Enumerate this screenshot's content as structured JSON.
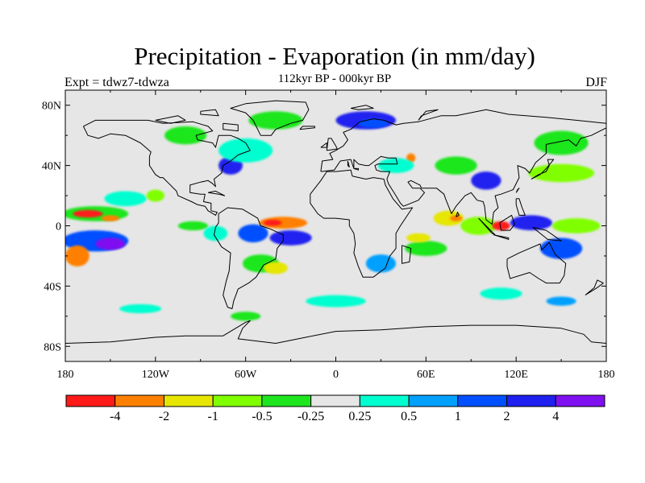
{
  "title": "Precipitation - Evaporation (in mm/day)",
  "subtitle": "112kyr BP - 000kyr BP",
  "left_label": "Expt = tdwz7-tdwza",
  "right_label": "DJF",
  "lat_ticks": [
    {
      "label": "80N",
      "value": 80
    },
    {
      "label": "40N",
      "value": 40
    },
    {
      "label": "0",
      "value": 0
    },
    {
      "label": "40S",
      "value": -40
    },
    {
      "label": "80S",
      "value": -80
    }
  ],
  "lon_ticks": [
    {
      "label": "180",
      "value": -180
    },
    {
      "label": "120W",
      "value": -120
    },
    {
      "label": "60W",
      "value": -60
    },
    {
      "label": "0",
      "value": 0
    },
    {
      "label": "60E",
      "value": 60
    },
    {
      "label": "120E",
      "value": 120
    },
    {
      "label": "180",
      "value": 180
    }
  ],
  "colorbar": {
    "colors": [
      "#ff1a1a",
      "#ff8000",
      "#e6e600",
      "#80ff00",
      "#1ee61e",
      "#e6e6e6",
      "#00ffd0",
      "#00a0ff",
      "#0050ff",
      "#2020f0",
      "#7f10f0"
    ],
    "labels": [
      "-4",
      "-2",
      "-1",
      "-0.5",
      "-0.25",
      "0.25",
      "0.5",
      "1",
      "2",
      "4"
    ]
  },
  "map_background": "#e6e6e6",
  "anomaly_blobs": [
    {
      "lon": -160,
      "lat": 8,
      "rx": 22,
      "ry": 5,
      "c": 4
    },
    {
      "lon": -165,
      "lat": 8,
      "rx": 10,
      "ry": 2.5,
      "c": 0
    },
    {
      "lon": -150,
      "lat": 5,
      "rx": 6,
      "ry": 2,
      "c": 1
    },
    {
      "lon": -160,
      "lat": -10,
      "rx": 22,
      "ry": 7,
      "c": 8
    },
    {
      "lon": -150,
      "lat": -12,
      "rx": 10,
      "ry": 4,
      "c": 10
    },
    {
      "lon": -172,
      "lat": -20,
      "rx": 8,
      "ry": 7,
      "c": 1
    },
    {
      "lon": -140,
      "lat": 18,
      "rx": 14,
      "ry": 5,
      "c": 6
    },
    {
      "lon": -120,
      "lat": 20,
      "rx": 6,
      "ry": 4,
      "c": 3
    },
    {
      "lon": -95,
      "lat": 0,
      "rx": 10,
      "ry": 3,
      "c": 4
    },
    {
      "lon": -80,
      "lat": -5,
      "rx": 8,
      "ry": 5,
      "c": 6
    },
    {
      "lon": -35,
      "lat": 2,
      "rx": 16,
      "ry": 4,
      "c": 1
    },
    {
      "lon": -42,
      "lat": 2,
      "rx": 6,
      "ry": 2,
      "c": 0
    },
    {
      "lon": -55,
      "lat": -5,
      "rx": 10,
      "ry": 6,
      "c": 8
    },
    {
      "lon": -30,
      "lat": -8,
      "rx": 14,
      "ry": 5,
      "c": 9
    },
    {
      "lon": -50,
      "lat": -25,
      "rx": 12,
      "ry": 6,
      "c": 4
    },
    {
      "lon": -40,
      "lat": -28,
      "rx": 8,
      "ry": 4,
      "c": 2
    },
    {
      "lon": -70,
      "lat": 40,
      "rx": 8,
      "ry": 6,
      "c": 9
    },
    {
      "lon": -60,
      "lat": 50,
      "rx": 18,
      "ry": 8,
      "c": 6
    },
    {
      "lon": -100,
      "lat": 60,
      "rx": 14,
      "ry": 6,
      "c": 4
    },
    {
      "lon": -40,
      "lat": 70,
      "rx": 18,
      "ry": 6,
      "c": 4
    },
    {
      "lon": 20,
      "lat": 70,
      "rx": 20,
      "ry": 6,
      "c": 9
    },
    {
      "lon": 25,
      "lat": 68,
      "rx": 10,
      "ry": 3,
      "c": 8
    },
    {
      "lon": 50,
      "lat": 45,
      "rx": 3,
      "ry": 3,
      "c": 1
    },
    {
      "lon": 40,
      "lat": 40,
      "rx": 12,
      "ry": 5,
      "c": 6
    },
    {
      "lon": 80,
      "lat": 40,
      "rx": 14,
      "ry": 6,
      "c": 4
    },
    {
      "lon": 100,
      "lat": 30,
      "rx": 10,
      "ry": 6,
      "c": 9
    },
    {
      "lon": 150,
      "lat": 35,
      "rx": 22,
      "ry": 6,
      "c": 3
    },
    {
      "lon": 150,
      "lat": 55,
      "rx": 18,
      "ry": 8,
      "c": 4
    },
    {
      "lon": 75,
      "lat": 5,
      "rx": 10,
      "ry": 5,
      "c": 2
    },
    {
      "lon": 80,
      "lat": 5,
      "rx": 4,
      "ry": 2,
      "c": 1
    },
    {
      "lon": 95,
      "lat": 0,
      "rx": 12,
      "ry": 6,
      "c": 3
    },
    {
      "lon": 110,
      "lat": 0,
      "rx": 6,
      "ry": 3,
      "c": 0
    },
    {
      "lon": 130,
      "lat": 2,
      "rx": 14,
      "ry": 5,
      "c": 9
    },
    {
      "lon": 160,
      "lat": 0,
      "rx": 16,
      "ry": 5,
      "c": 3
    },
    {
      "lon": 150,
      "lat": -15,
      "rx": 14,
      "ry": 7,
      "c": 8
    },
    {
      "lon": 60,
      "lat": -15,
      "rx": 14,
      "ry": 5,
      "c": 4
    },
    {
      "lon": 55,
      "lat": -8,
      "rx": 8,
      "ry": 3,
      "c": 2
    },
    {
      "lon": 30,
      "lat": -25,
      "rx": 10,
      "ry": 6,
      "c": 7
    },
    {
      "lon": 0,
      "lat": -50,
      "rx": 20,
      "ry": 4,
      "c": 6
    },
    {
      "lon": 110,
      "lat": -45,
      "rx": 14,
      "ry": 4,
      "c": 6
    },
    {
      "lon": -130,
      "lat": -55,
      "rx": 14,
      "ry": 3,
      "c": 6
    },
    {
      "lon": -60,
      "lat": -60,
      "rx": 10,
      "ry": 3,
      "c": 4
    },
    {
      "lon": 150,
      "lat": -50,
      "rx": 10,
      "ry": 3,
      "c": 7
    }
  ],
  "coastlines": [
    [
      [
        -168,
        66
      ],
      [
        -160,
        70
      ],
      [
        -140,
        70
      ],
      [
        -125,
        70
      ],
      [
        -115,
        68
      ],
      [
        -95,
        69
      ],
      [
        -85,
        66
      ],
      [
        -82,
        63
      ],
      [
        -93,
        60
      ],
      [
        -92,
        57
      ],
      [
        -82,
        55
      ],
      [
        -80,
        52
      ],
      [
        -78,
        60
      ],
      [
        -70,
        60
      ],
      [
        -65,
        58
      ],
      [
        -60,
        55
      ],
      [
        -57,
        50
      ],
      [
        -65,
        47
      ],
      [
        -70,
        43
      ],
      [
        -75,
        40
      ],
      [
        -76,
        35
      ],
      [
        -81,
        31
      ],
      [
        -80,
        26
      ],
      [
        -82,
        28
      ],
      [
        -85,
        30
      ],
      [
        -90,
        29
      ],
      [
        -97,
        27
      ],
      [
        -97,
        22
      ],
      [
        -90,
        21
      ],
      [
        -87,
        21
      ],
      [
        -88,
        16
      ],
      [
        -83,
        15
      ],
      [
        -83,
        10
      ],
      [
        -79,
        9
      ],
      [
        -80,
        7
      ],
      [
        -85,
        10
      ],
      [
        -87,
        13
      ],
      [
        -92,
        14
      ],
      [
        -96,
        16
      ],
      [
        -105,
        20
      ],
      [
        -106,
        23
      ],
      [
        -112,
        29
      ],
      [
        -115,
        32
      ],
      [
        -117,
        32
      ],
      [
        -120,
        34
      ],
      [
        -124,
        40
      ],
      [
        -124,
        46
      ],
      [
        -123,
        49
      ],
      [
        -130,
        55
      ],
      [
        -140,
        60
      ],
      [
        -150,
        61
      ],
      [
        -158,
        58
      ],
      [
        -165,
        60
      ],
      [
        -168,
        66
      ]
    ],
    [
      [
        -78,
        8
      ],
      [
        -72,
        12
      ],
      [
        -62,
        11
      ],
      [
        -52,
        5
      ],
      [
        -50,
        0
      ],
      [
        -44,
        -2
      ],
      [
        -35,
        -6
      ],
      [
        -35,
        -10
      ],
      [
        -39,
        -15
      ],
      [
        -40,
        -22
      ],
      [
        -48,
        -26
      ],
      [
        -53,
        -34
      ],
      [
        -58,
        -38
      ],
      [
        -65,
        -42
      ],
      [
        -68,
        -50
      ],
      [
        -69,
        -55
      ],
      [
        -72,
        -54
      ],
      [
        -75,
        -46
      ],
      [
        -73,
        -37
      ],
      [
        -71,
        -30
      ],
      [
        -70,
        -18
      ],
      [
        -76,
        -14
      ],
      [
        -81,
        -6
      ],
      [
        -80,
        -1
      ],
      [
        -78,
        2
      ],
      [
        -78,
        8
      ]
    ],
    [
      [
        -50,
        60
      ],
      [
        -43,
        60
      ],
      [
        -40,
        64
      ],
      [
        -30,
        68
      ],
      [
        -22,
        70
      ],
      [
        -18,
        77
      ],
      [
        -20,
        82
      ],
      [
        -40,
        83
      ],
      [
        -60,
        81
      ],
      [
        -70,
        78
      ],
      [
        -60,
        75
      ],
      [
        -55,
        70
      ],
      [
        -50,
        60
      ]
    ],
    [
      [
        -17,
        21
      ],
      [
        -17,
        15
      ],
      [
        -12,
        8
      ],
      [
        -8,
        5
      ],
      [
        0,
        5
      ],
      [
        9,
        4
      ],
      [
        9,
        0
      ],
      [
        12,
        -5
      ],
      [
        13,
        -12
      ],
      [
        12,
        -18
      ],
      [
        15,
        -27
      ],
      [
        18,
        -34
      ],
      [
        25,
        -34
      ],
      [
        33,
        -28
      ],
      [
        36,
        -20
      ],
      [
        40,
        -15
      ],
      [
        40,
        -5
      ],
      [
        43,
        0
      ],
      [
        51,
        12
      ],
      [
        44,
        11
      ],
      [
        38,
        18
      ],
      [
        33,
        27
      ],
      [
        32,
        31
      ],
      [
        25,
        32
      ],
      [
        20,
        31
      ],
      [
        11,
        33
      ],
      [
        10,
        37
      ],
      [
        0,
        36
      ],
      [
        -6,
        36
      ],
      [
        -10,
        30
      ],
      [
        -17,
        21
      ]
    ],
    [
      [
        -10,
        36
      ],
      [
        -9,
        43
      ],
      [
        -2,
        44
      ],
      [
        -4,
        48
      ],
      [
        0,
        50
      ],
      [
        5,
        53
      ],
      [
        8,
        57
      ],
      [
        5,
        62
      ],
      [
        10,
        64
      ],
      [
        16,
        69
      ],
      [
        25,
        71
      ],
      [
        32,
        70
      ],
      [
        40,
        67
      ],
      [
        45,
        68
      ],
      [
        55,
        69
      ],
      [
        70,
        73
      ],
      [
        80,
        73
      ],
      [
        100,
        77
      ],
      [
        115,
        74
      ],
      [
        140,
        72
      ],
      [
        160,
        70
      ],
      [
        180,
        68
      ],
      [
        180,
        65
      ],
      [
        170,
        60
      ],
      [
        163,
        58
      ],
      [
        160,
        53
      ],
      [
        155,
        57
      ],
      [
        140,
        54
      ],
      [
        140,
        48
      ],
      [
        133,
        42
      ],
      [
        129,
        35
      ],
      [
        126,
        38
      ],
      [
        121,
        40
      ],
      [
        122,
        32
      ],
      [
        118,
        24
      ],
      [
        110,
        21
      ],
      [
        106,
        20
      ],
      [
        108,
        12
      ],
      [
        105,
        9
      ],
      [
        104,
        1
      ],
      [
        100,
        4
      ],
      [
        99,
        13
      ],
      [
        98,
        16
      ],
      [
        94,
        17
      ],
      [
        90,
        22
      ],
      [
        86,
        20
      ],
      [
        80,
        13
      ],
      [
        77,
        8
      ],
      [
        73,
        18
      ],
      [
        72,
        21
      ],
      [
        67,
        25
      ],
      [
        57,
        25
      ],
      [
        56,
        27
      ],
      [
        50,
        30
      ],
      [
        48,
        29
      ],
      [
        51,
        25
      ],
      [
        56,
        25
      ],
      [
        59,
        22
      ],
      [
        55,
        17
      ],
      [
        45,
        13
      ],
      [
        43,
        15
      ],
      [
        40,
        20
      ],
      [
        35,
        28
      ],
      [
        34,
        31
      ],
      [
        36,
        36
      ],
      [
        30,
        36
      ],
      [
        27,
        37
      ],
      [
        26,
        40
      ],
      [
        28,
        41
      ],
      [
        41,
        41
      ],
      [
        40,
        45
      ],
      [
        35,
        45
      ],
      [
        30,
        46
      ],
      [
        22,
        40
      ],
      [
        20,
        40
      ],
      [
        15,
        41
      ],
      [
        12,
        44
      ],
      [
        12,
        38
      ],
      [
        10,
        44
      ],
      [
        3,
        43
      ],
      [
        -1,
        37
      ],
      [
        -10,
        36
      ]
    ],
    [
      [
        114,
        -22
      ],
      [
        122,
        -18
      ],
      [
        129,
        -15
      ],
      [
        136,
        -12
      ],
      [
        137,
        -16
      ],
      [
        142,
        -11
      ],
      [
        146,
        -19
      ],
      [
        153,
        -25
      ],
      [
        152,
        -33
      ],
      [
        149,
        -38
      ],
      [
        140,
        -38
      ],
      [
        135,
        -35
      ],
      [
        129,
        -31
      ],
      [
        116,
        -35
      ],
      [
        114,
        -27
      ],
      [
        114,
        -22
      ]
    ],
    [
      [
        -180,
        -78
      ],
      [
        -150,
        -77
      ],
      [
        -120,
        -74
      ],
      [
        -100,
        -73
      ],
      [
        -75,
        -73
      ],
      [
        -60,
        -64
      ],
      [
        -57,
        -63
      ],
      [
        -62,
        -68
      ],
      [
        -65,
        -75
      ],
      [
        -40,
        -78
      ],
      [
        -20,
        -74
      ],
      [
        0,
        -70
      ],
      [
        30,
        -69
      ],
      [
        60,
        -67
      ],
      [
        90,
        -66
      ],
      [
        120,
        -66
      ],
      [
        150,
        -68
      ],
      [
        165,
        -72
      ],
      [
        170,
        -77
      ],
      [
        180,
        -78
      ]
    ],
    [
      [
        -6,
        50
      ],
      [
        -5,
        58
      ],
      [
        -3,
        58
      ],
      [
        0,
        53
      ],
      [
        1,
        51
      ],
      [
        -6,
        50
      ]
    ],
    [
      [
        -10,
        52
      ],
      [
        -6,
        55
      ],
      [
        -6,
        52
      ],
      [
        -10,
        52
      ]
    ],
    [
      [
        130,
        31
      ],
      [
        135,
        34
      ],
      [
        140,
        36
      ],
      [
        142,
        40
      ],
      [
        141,
        44
      ],
      [
        145,
        44
      ],
      [
        140,
        38
      ],
      [
        136,
        34
      ],
      [
        130,
        31
      ]
    ],
    [
      [
        95,
        5
      ],
      [
        104,
        -5
      ],
      [
        106,
        -6
      ],
      [
        100,
        0
      ],
      [
        95,
        5
      ]
    ],
    [
      [
        109,
        2
      ],
      [
        117,
        7
      ],
      [
        119,
        1
      ],
      [
        116,
        -3
      ],
      [
        110,
        -3
      ],
      [
        109,
        2
      ]
    ],
    [
      [
        131,
        -1
      ],
      [
        140,
        -3
      ],
      [
        150,
        -10
      ],
      [
        141,
        -9
      ],
      [
        131,
        -1
      ]
    ],
    [
      [
        120,
        18
      ],
      [
        122,
        18
      ],
      [
        124,
        12
      ],
      [
        126,
        7
      ],
      [
        122,
        7
      ],
      [
        120,
        14
      ],
      [
        120,
        18
      ]
    ],
    [
      [
        44,
        -13
      ],
      [
        50,
        -15
      ],
      [
        49,
        -24
      ],
      [
        44,
        -25
      ],
      [
        44,
        -13
      ]
    ],
    [
      [
        -24,
        64
      ],
      [
        -14,
        65
      ],
      [
        -14,
        66
      ],
      [
        -22,
        66
      ],
      [
        -24,
        64
      ]
    ],
    [
      [
        166,
        -46
      ],
      [
        174,
        -41
      ],
      [
        178,
        -38
      ],
      [
        174,
        -36
      ],
      [
        172,
        -41
      ],
      [
        166,
        -46
      ]
    ],
    [
      [
        -85,
        22
      ],
      [
        -80,
        23
      ],
      [
        -74,
        20
      ],
      [
        -78,
        21
      ],
      [
        -85,
        22
      ]
    ],
    [
      [
        80,
        6
      ],
      [
        82,
        7
      ],
      [
        81,
        9
      ],
      [
        80,
        6
      ]
    ],
    [
      [
        105,
        -6
      ],
      [
        115,
        -8
      ],
      [
        115,
        -9
      ],
      [
        105,
        -6
      ]
    ],
    [
      [
        120,
        22
      ],
      [
        122,
        25
      ],
      [
        121,
        24
      ],
      [
        120,
        22
      ]
    ],
    [
      [
        8,
        43
      ],
      [
        9,
        39
      ],
      [
        8,
        40
      ],
      [
        8,
        43
      ]
    ],
    [
      [
        12,
        38
      ],
      [
        15,
        38
      ],
      [
        15,
        37
      ],
      [
        12,
        38
      ]
    ],
    [
      [
        -75,
        68
      ],
      [
        -65,
        67
      ],
      [
        -65,
        63
      ],
      [
        -75,
        64
      ],
      [
        -75,
        68
      ]
    ],
    [
      [
        -120,
        70
      ],
      [
        -105,
        73
      ],
      [
        -100,
        70
      ],
      [
        -110,
        68
      ],
      [
        -120,
        70
      ]
    ],
    [
      [
        -90,
        76
      ],
      [
        -80,
        77
      ],
      [
        -78,
        73
      ],
      [
        -90,
        74
      ],
      [
        -90,
        76
      ]
    ],
    [
      [
        10,
        78
      ],
      [
        20,
        80
      ],
      [
        25,
        78
      ],
      [
        15,
        77
      ],
      [
        10,
        78
      ]
    ],
    [
      [
        55,
        70
      ],
      [
        60,
        76
      ],
      [
        68,
        77
      ],
      [
        57,
        73
      ],
      [
        55,
        70
      ]
    ]
  ]
}
